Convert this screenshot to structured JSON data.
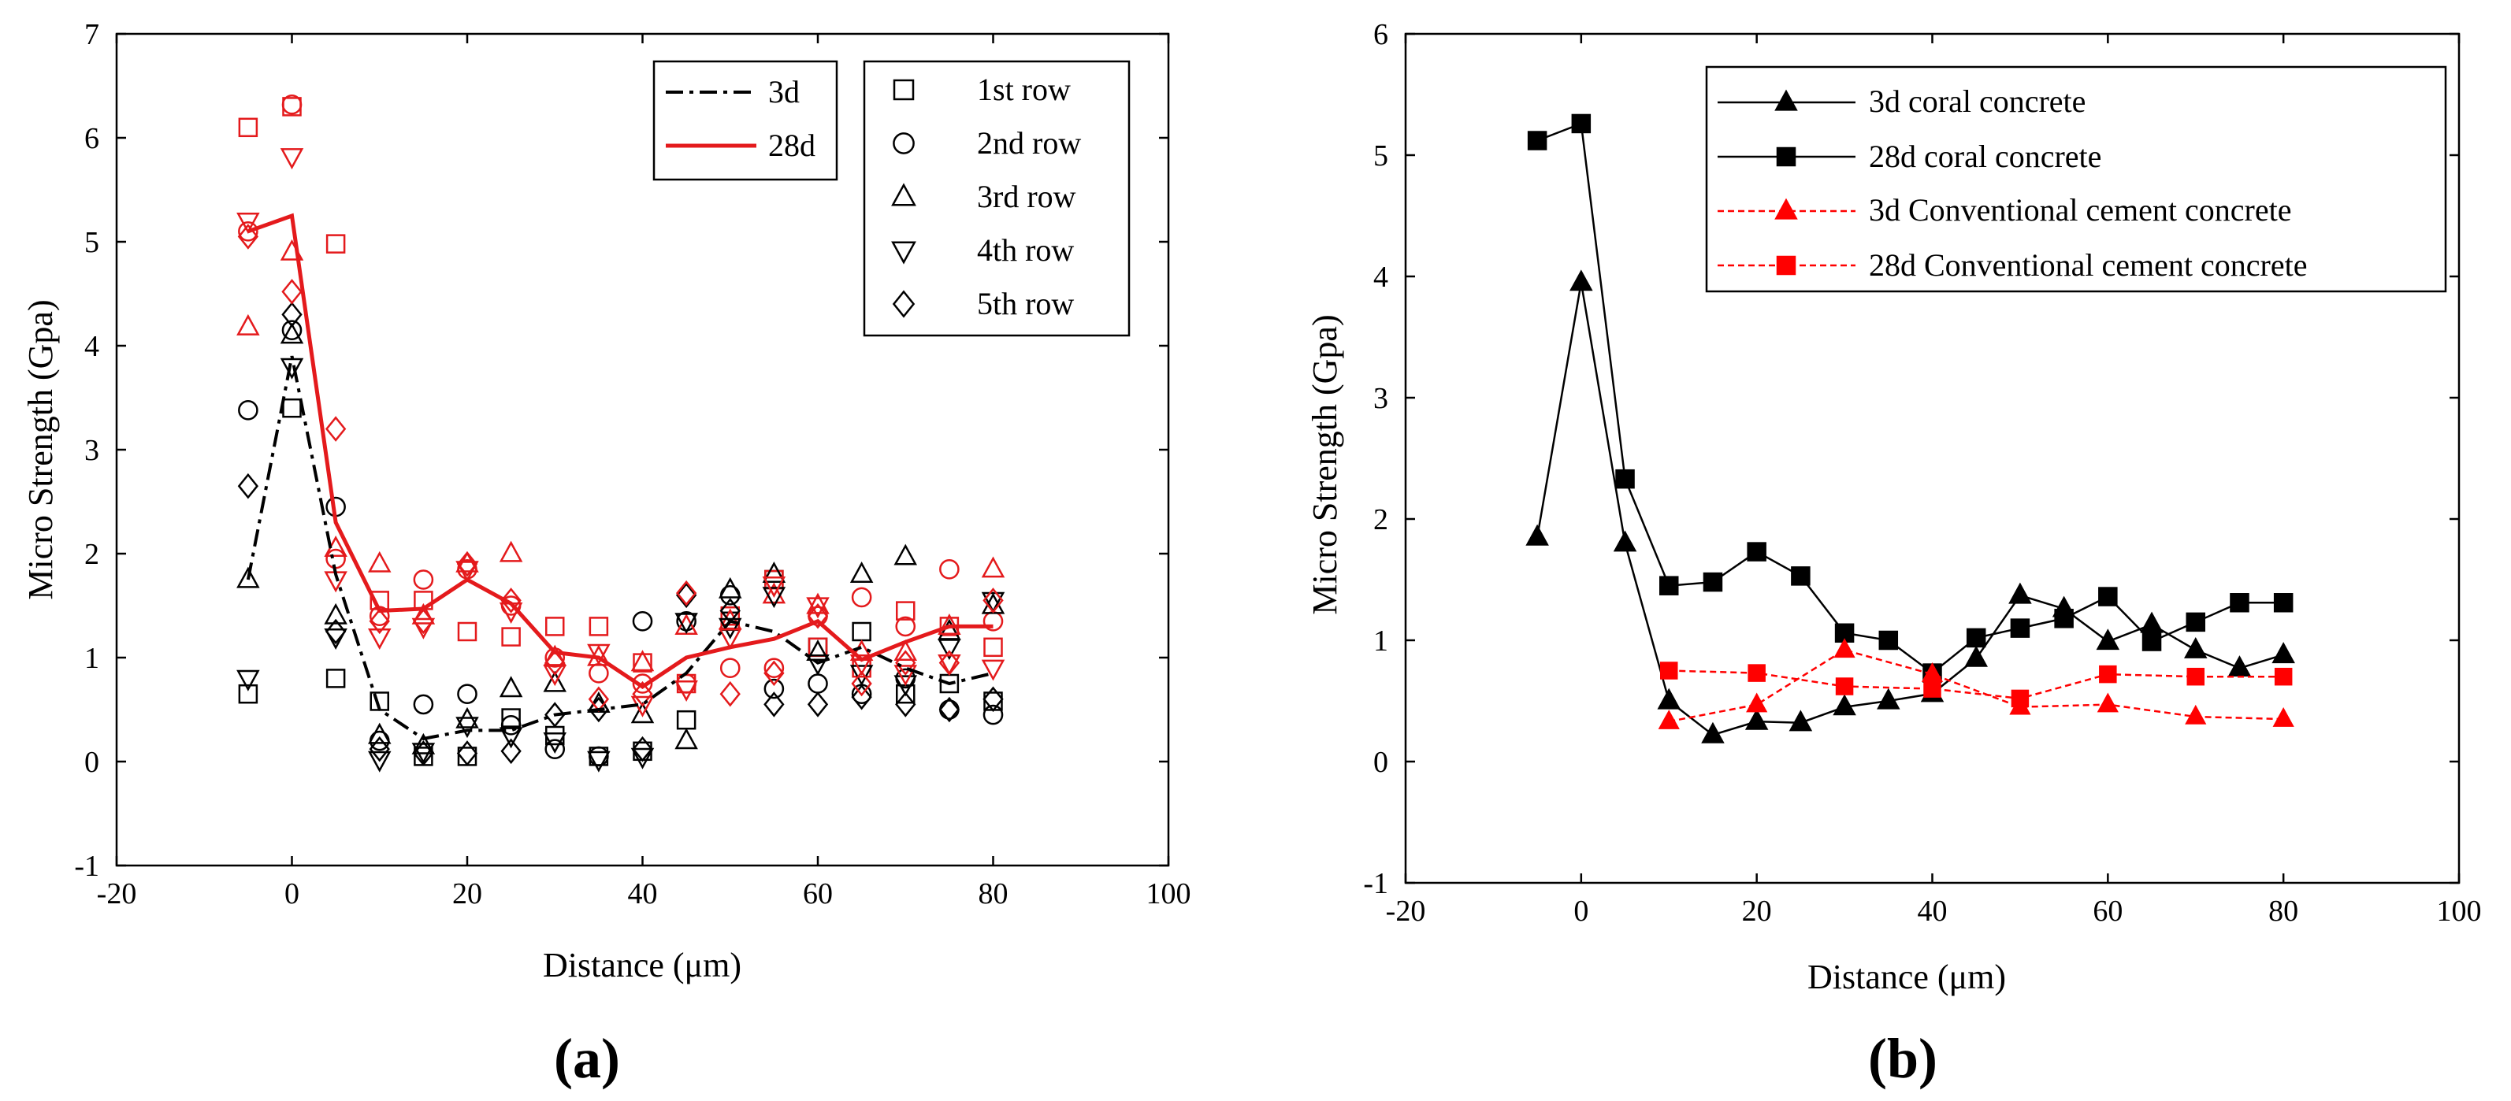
{
  "chart_data": [
    {
      "panel_label": "(a)",
      "type": "scatter",
      "xlabel": "Distance (μm)",
      "ylabel": "Micro Strength (Gpa)",
      "xlim": [
        -20,
        100
      ],
      "ylim": [
        -1,
        7
      ],
      "xticks": [
        -20,
        0,
        20,
        40,
        60,
        80,
        100
      ],
      "yticks": [
        -1,
        0,
        1,
        2,
        3,
        4,
        5,
        6,
        7
      ],
      "x": [
        -5,
        0,
        5,
        10,
        15,
        20,
        25,
        30,
        35,
        40,
        45,
        50,
        55,
        60,
        65,
        70,
        75,
        80
      ],
      "lines": [
        {
          "name": "3d",
          "color": "#000000",
          "dash": "dashdot",
          "values": [
            1.75,
            3.9,
            1.8,
            0.5,
            0.22,
            0.3,
            0.3,
            0.45,
            0.5,
            0.55,
            0.85,
            1.35,
            1.25,
            0.95,
            1.1,
            0.9,
            0.75,
            0.85
          ]
        },
        {
          "name": "28d",
          "color": "#e41a1c",
          "dash": "solid",
          "values": [
            5.1,
            5.25,
            2.3,
            1.45,
            1.47,
            1.75,
            1.52,
            1.05,
            1.0,
            0.72,
            1.0,
            1.1,
            1.18,
            1.35,
            0.98,
            1.15,
            1.3,
            1.3
          ]
        }
      ],
      "scatter_series": [
        {
          "name": "1st row",
          "marker": "square",
          "age_3d": [
            0.65,
            3.4,
            0.8,
            0.58,
            0.05,
            0.05,
            0.42,
            0.25,
            0.05,
            0.1,
            0.4,
            1.35,
            1.75,
            1.1,
            1.25,
            0.65,
            0.75,
            0.58
          ],
          "age_28d": [
            6.1,
            6.3,
            4.98,
            1.55,
            1.55,
            1.25,
            1.2,
            1.3,
            1.3,
            0.95,
            0.75,
            1.4,
            1.75,
            1.1,
            0.9,
            1.45,
            1.3,
            1.1
          ]
        },
        {
          "name": "2nd row",
          "marker": "circle",
          "age_3d": [
            3.38,
            4.15,
            2.45,
            0.2,
            0.55,
            0.65,
            0.35,
            0.12,
            0.05,
            1.35,
            1.35,
            1.6,
            0.7,
            0.75,
            0.65,
            0.8,
            0.5,
            0.45
          ],
          "age_28d": [
            5.1,
            6.32,
            1.95,
            1.4,
            1.75,
            1.85,
            1.5,
            1.0,
            0.85,
            0.75,
            0.75,
            0.9,
            0.9,
            1.4,
            1.58,
            1.3,
            1.85,
            1.35
          ]
        },
        {
          "name": "3rd row",
          "marker": "triangle-up",
          "age_3d": [
            1.75,
            4.1,
            1.4,
            0.25,
            0.15,
            0.4,
            0.7,
            0.75,
            0.55,
            0.45,
            0.2,
            1.65,
            1.8,
            1.05,
            1.8,
            1.97,
            1.25,
            1.5
          ],
          "age_28d": [
            4.18,
            4.9,
            2.05,
            1.9,
            1.4,
            1.9,
            2.0,
            1.0,
            1.0,
            0.95,
            1.3,
            1.35,
            1.6,
            1.5,
            1.05,
            1.05,
            1.3,
            1.85
          ]
        },
        {
          "name": "4th row",
          "marker": "triangle-down",
          "age_3d": [
            0.8,
            3.8,
            1.2,
            0.02,
            0.1,
            0.35,
            0.25,
            0.2,
            0.02,
            0.05,
            1.35,
            1.3,
            1.6,
            0.95,
            0.85,
            0.75,
            1.1,
            1.55
          ],
          "age_28d": [
            5.2,
            5.82,
            1.75,
            1.2,
            1.3,
            1.85,
            1.45,
            0.85,
            1.05,
            0.55,
            0.7,
            1.2,
            1.7,
            1.5,
            0.95,
            0.85,
            0.95,
            0.9
          ]
        },
        {
          "name": "5th row",
          "marker": "diamond",
          "age_3d": [
            2.65,
            4.3,
            1.25,
            0.12,
            0.08,
            0.08,
            0.1,
            0.45,
            0.5,
            0.12,
            1.6,
            1.45,
            0.55,
            0.55,
            0.62,
            0.55,
            0.5,
            0.6
          ],
          "age_28d": [
            5.05,
            4.52,
            3.2,
            1.35,
            1.35,
            1.9,
            1.55,
            0.95,
            0.6,
            0.65,
            1.62,
            0.65,
            0.85,
            1.4,
            0.75,
            0.95,
            0.95,
            1.55
          ]
        }
      ],
      "legend_lines": [
        "3d",
        "28d"
      ],
      "legend_markers": [
        "1st row",
        "2nd row",
        "3rd row",
        "4th row",
        "5th row"
      ],
      "legend_placement": "top-right",
      "grid": false
    },
    {
      "panel_label": "(b)",
      "type": "line",
      "xlabel": "Distance (μm)",
      "ylabel": "Micro Strength (Gpa)",
      "xlim": [
        -20,
        100
      ],
      "ylim": [
        -1,
        6
      ],
      "xticks": [
        -20,
        0,
        20,
        40,
        60,
        80,
        100
      ],
      "yticks": [
        -1,
        0,
        1,
        2,
        3,
        4,
        5,
        6
      ],
      "series": [
        {
          "name": "3d coral concrete",
          "color": "#000000",
          "marker": "triangle",
          "dash": "solid",
          "x": [
            -5,
            0,
            5,
            10,
            15,
            20,
            25,
            30,
            35,
            40,
            45,
            50,
            55,
            60,
            65,
            70,
            75,
            80
          ],
          "values": [
            1.85,
            3.95,
            1.8,
            0.5,
            0.22,
            0.33,
            0.32,
            0.45,
            0.5,
            0.56,
            0.85,
            1.37,
            1.26,
            0.99,
            1.13,
            0.92,
            0.77,
            0.88
          ]
        },
        {
          "name": "28d coral concrete",
          "color": "#000000",
          "marker": "square",
          "dash": "solid",
          "x": [
            -5,
            0,
            5,
            10,
            15,
            20,
            25,
            30,
            35,
            40,
            45,
            50,
            55,
            60,
            65,
            70,
            75,
            80
          ],
          "values": [
            5.12,
            5.26,
            2.33,
            1.45,
            1.48,
            1.73,
            1.53,
            1.06,
            1.0,
            0.73,
            1.02,
            1.1,
            1.18,
            1.36,
            0.99,
            1.15,
            1.31,
            1.31
          ]
        },
        {
          "name": "3d Conventional cement concrete",
          "color": "#ff0000",
          "marker": "triangle",
          "dash": "dashed",
          "x": [
            10,
            20,
            30,
            40,
            50,
            60,
            70,
            80
          ],
          "values": [
            0.33,
            0.47,
            0.92,
            0.72,
            0.45,
            0.47,
            0.37,
            0.35
          ]
        },
        {
          "name": "28d Conventional cement concrete",
          "color": "#ff0000",
          "marker": "square",
          "dash": "dashed",
          "x": [
            10,
            20,
            30,
            40,
            50,
            60,
            70,
            80
          ],
          "values": [
            0.75,
            0.73,
            0.62,
            0.6,
            0.52,
            0.72,
            0.7,
            0.7
          ]
        }
      ],
      "legend_placement": "top-right",
      "grid": false
    }
  ]
}
